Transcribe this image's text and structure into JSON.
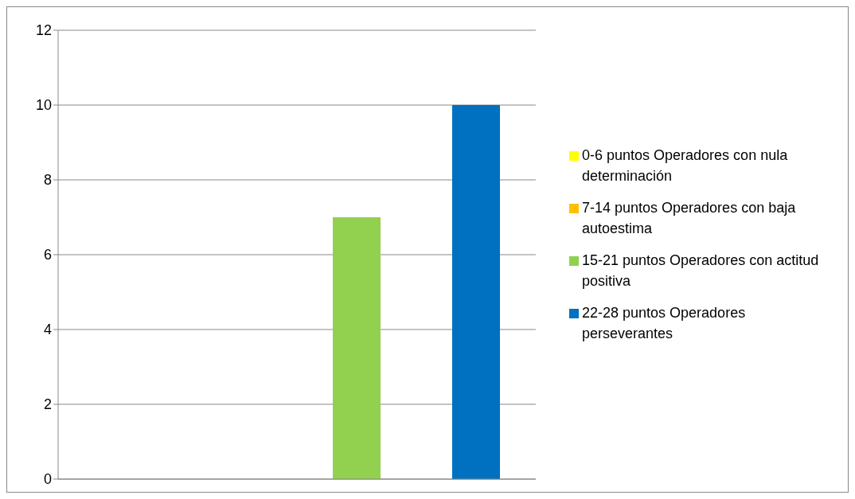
{
  "chart_data": {
    "type": "bar",
    "categories": [
      null
    ],
    "series": [
      {
        "name": "0-6 puntos Operadores con nula determinación",
        "color": "#ffff00",
        "values": [
          0
        ]
      },
      {
        "name": "7-14 puntos Operadores con baja autoestima",
        "color": "#ffc000",
        "values": [
          0
        ]
      },
      {
        "name": "15-21 puntos Operadores con actitud positiva",
        "color": "#92d050",
        "values": [
          7
        ]
      },
      {
        "name": "22-28 puntos Operadores perseverantes",
        "color": "#0070c0",
        "values": [
          10
        ]
      }
    ],
    "ylim": [
      0,
      12
    ],
    "yticks": [
      0,
      2,
      4,
      6,
      8,
      10,
      12
    ],
    "grid": "y",
    "legend": "right"
  }
}
